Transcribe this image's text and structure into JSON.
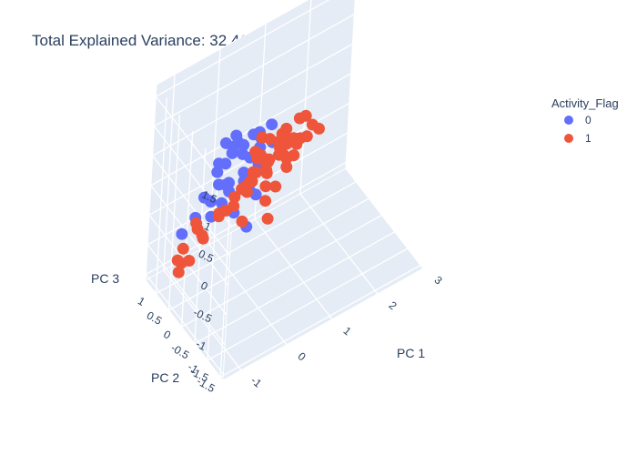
{
  "chart_data": {
    "type": "scatter",
    "title": "Total Explained Variance: 32.41%",
    "axes": {
      "x": {
        "label": "PC 1",
        "ticks": [
          "-1",
          "0",
          "1",
          "2",
          "3"
        ]
      },
      "y": {
        "label": "PC 2",
        "ticks": [
          "-1.5",
          "-1",
          "-0.5",
          "0",
          "0.5",
          "1"
        ]
      },
      "z": {
        "label": "PC 3",
        "ticks": [
          "-1.5",
          "-1",
          "-0.5",
          "0",
          "0.5",
          "1",
          "1.5"
        ]
      }
    },
    "legend": {
      "title": "Activity_Flag",
      "placement": "top-right"
    },
    "grid": true,
    "series": [
      {
        "name": "0",
        "color": "#636efa",
        "points": [
          [
            -0.6,
            -0.2,
            1.1
          ],
          [
            -0.4,
            0.0,
            1.2
          ],
          [
            -0.2,
            -0.3,
            1.3
          ],
          [
            -0.5,
            0.2,
            1.0
          ],
          [
            -0.3,
            -0.1,
            0.9
          ],
          [
            -0.7,
            0.1,
            0.8
          ],
          [
            -0.1,
            -0.4,
            1.1
          ],
          [
            0.0,
            -0.2,
            1.2
          ],
          [
            -0.8,
            -0.1,
            0.6
          ],
          [
            -0.6,
            0.3,
            0.5
          ],
          [
            -0.9,
            0.0,
            0.3
          ],
          [
            -0.5,
            -0.5,
            0.9
          ],
          [
            -0.2,
            0.4,
            0.7
          ],
          [
            0.1,
            -0.1,
            1.0
          ],
          [
            -0.3,
            0.5,
            0.4
          ],
          [
            -1.0,
            -0.2,
            0.2
          ],
          [
            -0.4,
            -0.6,
            0.6
          ],
          [
            0.2,
            -0.3,
            1.3
          ],
          [
            -0.6,
            -0.4,
            1.4
          ],
          [
            -0.1,
            0.2,
            0.8
          ],
          [
            -0.8,
            0.4,
            0.1
          ],
          [
            -0.3,
            -0.2,
            0.5
          ],
          [
            0.0,
            0.1,
            0.6
          ],
          [
            -0.5,
            0.0,
            0.3
          ],
          [
            -0.7,
            -0.3,
            0.7
          ],
          [
            -1.1,
            0.2,
            0.0
          ],
          [
            -0.2,
            -0.5,
            0.4
          ],
          [
            0.3,
            -0.2,
            0.9
          ],
          [
            -0.4,
            0.3,
            0.2
          ],
          [
            -0.9,
            -0.4,
            0.5
          ],
          [
            -0.1,
            -0.1,
            0.2
          ],
          [
            0.2,
            0.1,
            0.4
          ],
          [
            -0.6,
            0.5,
            -0.1
          ],
          [
            -0.3,
            0.1,
            -0.2
          ],
          [
            -1.2,
            0.5,
            -0.4
          ],
          [
            -0.5,
            -0.7,
            0.1
          ]
        ]
      },
      {
        "name": "1",
        "color": "#ef553b",
        "points": [
          [
            0.3,
            0.0,
            0.5
          ],
          [
            0.5,
            0.2,
            0.3
          ],
          [
            0.4,
            -0.3,
            0.7
          ],
          [
            0.6,
            0.4,
            0.1
          ],
          [
            0.2,
            0.3,
            0.0
          ],
          [
            0.7,
            -0.1,
            0.4
          ],
          [
            0.8,
            0.3,
            0.2
          ],
          [
            0.1,
            0.5,
            -0.2
          ],
          [
            0.4,
            0.6,
            -0.1
          ],
          [
            0.9,
            0.0,
            0.6
          ],
          [
            0.5,
            -0.4,
            0.9
          ],
          [
            0.3,
            0.7,
            -0.4
          ],
          [
            1.0,
            0.5,
            0.0
          ],
          [
            0.6,
            0.8,
            -0.3
          ],
          [
            0.2,
            -0.2,
            0.2
          ],
          [
            0.8,
            -0.3,
            0.8
          ],
          [
            1.1,
            0.2,
            0.3
          ],
          [
            0.7,
            0.6,
            -0.2
          ],
          [
            0.4,
            0.1,
            -0.3
          ],
          [
            0.9,
            0.9,
            -0.5
          ],
          [
            0.5,
            1.0,
            -0.6
          ],
          [
            1.2,
            0.0,
            0.5
          ],
          [
            0.3,
            0.4,
            0.4
          ],
          [
            0.6,
            -0.2,
            1.0
          ],
          [
            1.0,
            0.7,
            0.1
          ],
          [
            0.8,
            0.4,
            -0.4
          ],
          [
            0.1,
            0.2,
            0.1
          ],
          [
            0.2,
            0.9,
            -0.6
          ],
          [
            1.3,
            0.4,
            0.2
          ],
          [
            0.7,
            0.1,
            0.7
          ],
          [
            0.4,
            -0.5,
            1.1
          ],
          [
            0.9,
            -0.4,
            1.2
          ],
          [
            1.1,
            0.8,
            -0.1
          ],
          [
            0.6,
            1.1,
            -0.8
          ],
          [
            0.0,
            0.6,
            -0.5
          ],
          [
            -0.2,
            0.8,
            -0.7
          ],
          [
            1.4,
            -0.1,
            0.6
          ],
          [
            0.5,
            0.5,
            0.5
          ],
          [
            0.3,
            -0.1,
            0.9
          ],
          [
            0.8,
            1.0,
            -0.2
          ],
          [
            -0.6,
            0.9,
            -0.8
          ],
          [
            -0.9,
            0.9,
            -1.0
          ],
          [
            -0.4,
            1.0,
            -1.1
          ],
          [
            -1.1,
            0.7,
            -1.2
          ],
          [
            -0.8,
            1.1,
            -1.4
          ],
          [
            -0.3,
            1.2,
            -1.2
          ],
          [
            -0.7,
            0.8,
            -0.6
          ],
          [
            -1.2,
            0.6,
            -0.9
          ],
          [
            -0.5,
            1.3,
            -1.6
          ],
          [
            0.0,
            1.1,
            -0.9
          ],
          [
            0.2,
            1.2,
            -1.0
          ],
          [
            1.0,
            1.1,
            -0.5
          ],
          [
            1.2,
            0.9,
            -0.3
          ],
          [
            0.6,
            0.3,
            -0.8
          ],
          [
            0.4,
            0.9,
            -1.1
          ],
          [
            1.3,
            0.6,
            -0.2
          ],
          [
            0.9,
            0.2,
            0.0
          ],
          [
            0.1,
            0.0,
            0.6
          ],
          [
            0.7,
            -0.5,
            1.3
          ],
          [
            1.5,
            0.3,
            0.4
          ]
        ]
      }
    ]
  }
}
